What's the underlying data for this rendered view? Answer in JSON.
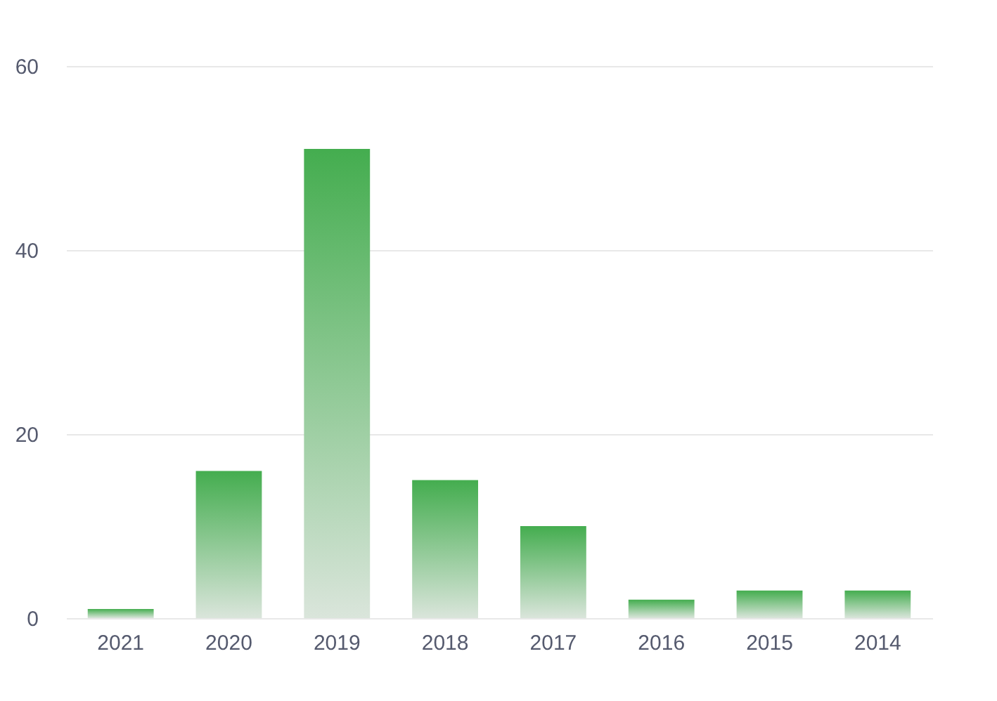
{
  "chart_data": {
    "type": "bar",
    "categories": [
      "2021",
      "2020",
      "2019",
      "2018",
      "2017",
      "2016",
      "2015",
      "2014"
    ],
    "values": [
      1,
      16,
      51,
      15,
      10,
      2,
      3,
      3
    ],
    "color": "#44ad4f",
    "ylim": [
      0,
      60
    ],
    "yticks": [
      0,
      20,
      40,
      60
    ],
    "grid": "y"
  }
}
